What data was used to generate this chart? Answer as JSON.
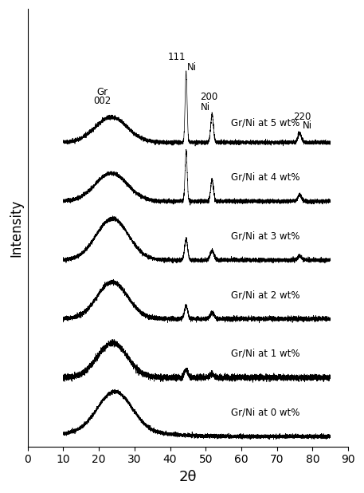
{
  "title": "",
  "xlabel": "2θ",
  "ylabel": "Intensity",
  "xlim": [
    0,
    90
  ],
  "xticks": [
    0,
    10,
    20,
    30,
    40,
    50,
    60,
    70,
    80,
    90
  ],
  "labels": [
    "Gr/Ni at 5 wt%",
    "Gr/Ni at 4 wt%",
    "Gr/Ni at 3 wt%",
    "Gr/Ni at 2 wt%",
    "Gr/Ni at 1 wt%",
    "Gr/Ni at 0 wt%"
  ],
  "background_color": "#ffffff",
  "line_color": "#000000",
  "figsize": [
    4.57,
    6.18
  ],
  "dpi": 100
}
